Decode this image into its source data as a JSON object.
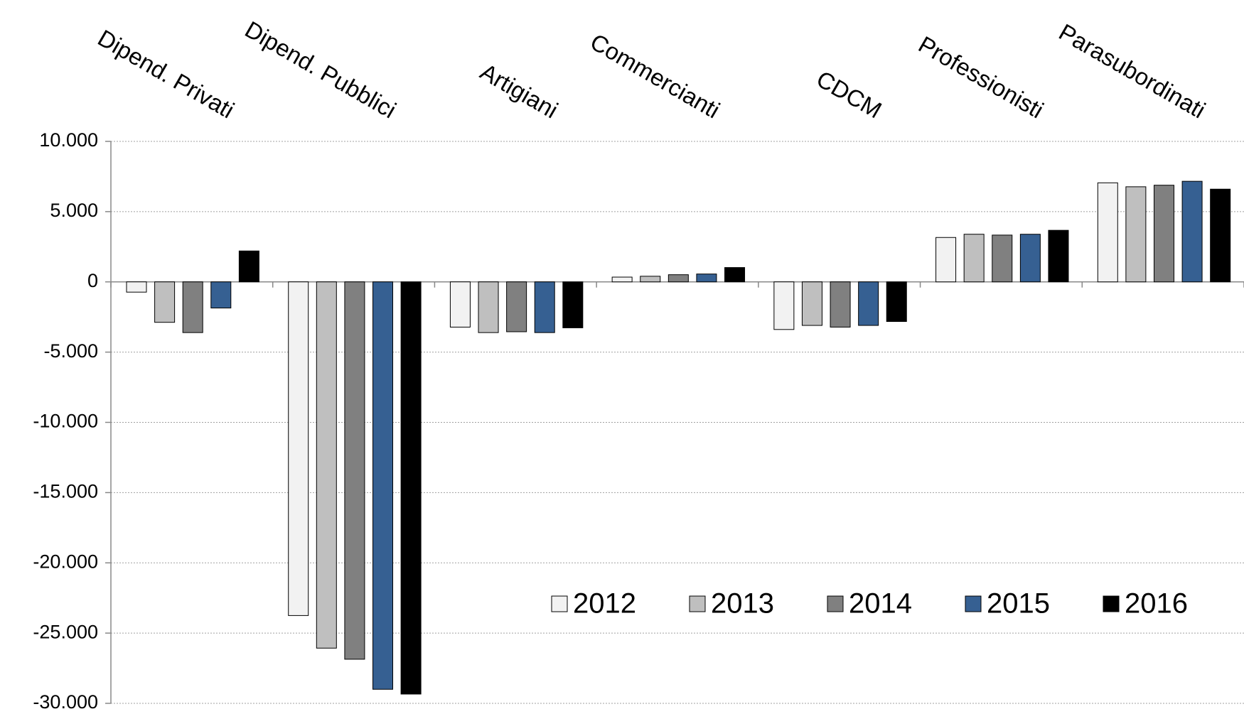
{
  "chart_data": {
    "type": "bar",
    "categories": [
      "Dipend. Privati",
      "Dipend. Pubblici",
      "Artigiani",
      "Commercianti",
      "CDCM",
      "Professionisti",
      "Parasubordinati"
    ],
    "series": [
      {
        "name": "2012",
        "color": "#f2f2f2",
        "values": [
          -730,
          -23750,
          -3220,
          340,
          -3390,
          3160,
          7050
        ]
      },
      {
        "name": "2013",
        "color": "#bfbfbf",
        "values": [
          -2880,
          -26070,
          -3610,
          400,
          -3100,
          3390,
          6770
        ]
      },
      {
        "name": "2014",
        "color": "#808080",
        "values": [
          -3610,
          -26860,
          -3550,
          510,
          -3220,
          3330,
          6880
        ]
      },
      {
        "name": "2015",
        "color": "#366092",
        "values": [
          -1860,
          -29000,
          -3610,
          560,
          -3100,
          3390,
          7160
        ]
      },
      {
        "name": "2016",
        "color": "#000000",
        "values": [
          2200,
          -29340,
          -3270,
          1020,
          -2820,
          3670,
          6600
        ]
      }
    ],
    "ylim": [
      -30000,
      10000
    ],
    "yticks": [
      {
        "value": -30000,
        "label": "-30.000"
      },
      {
        "value": -25000,
        "label": "-25.000"
      },
      {
        "value": -20000,
        "label": "-20.000"
      },
      {
        "value": -15000,
        "label": "-15.000"
      },
      {
        "value": -10000,
        "label": "-10.000"
      },
      {
        "value": -5000,
        "label": "-5.000"
      },
      0,
      {
        "value": 5000,
        "label": "5.000"
      },
      {
        "value": 10000,
        "label": "10.000"
      }
    ],
    "grid": true,
    "legend": "lower right"
  }
}
